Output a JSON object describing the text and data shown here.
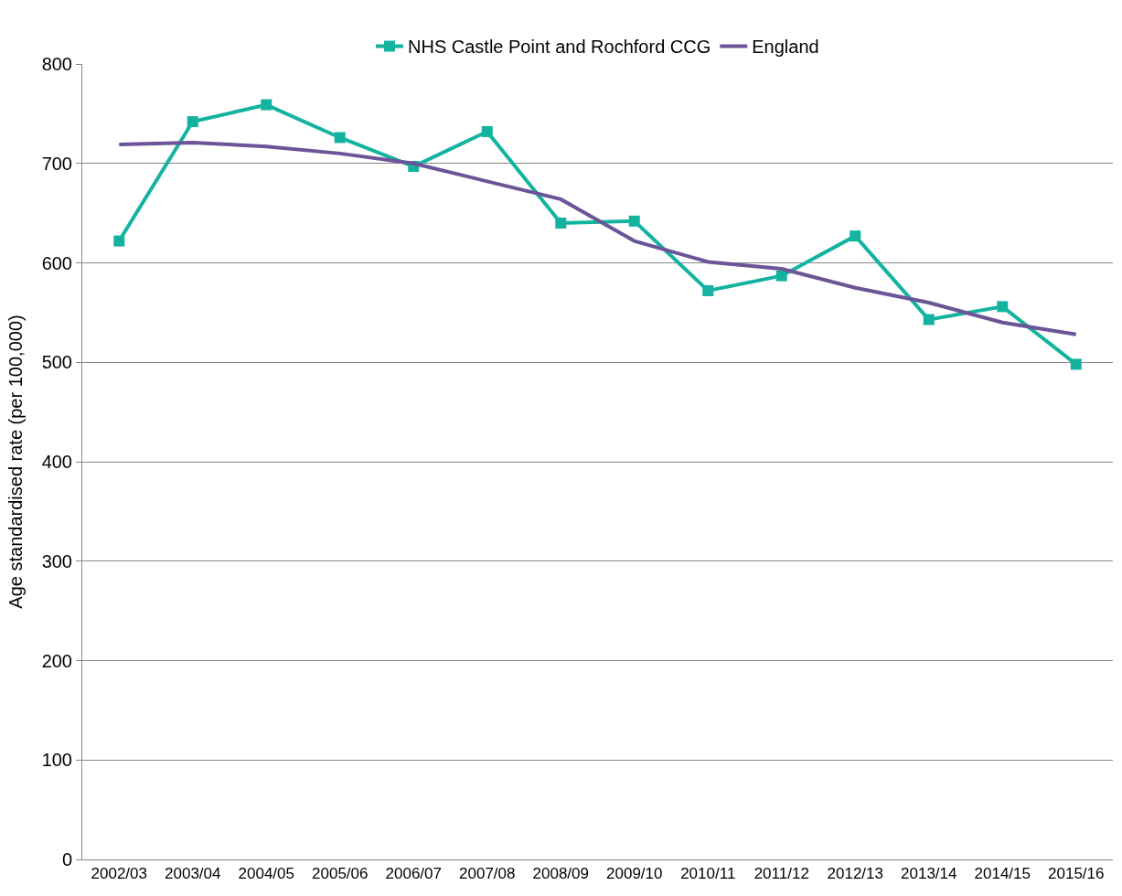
{
  "chart_data": {
    "type": "line",
    "ylabel": "Age standardised rate (per 100,000)",
    "categories": [
      "2002/03",
      "2003/04",
      "2004/05",
      "2005/06",
      "2006/07",
      "2007/08",
      "2008/09",
      "2009/10",
      "2010/11",
      "2011/12",
      "2012/13",
      "2013/14",
      "2014/15",
      "2015/16"
    ],
    "series": [
      {
        "name": "NHS Castle Point and Rochford CCG",
        "color": "#14b3a0",
        "marker": "square",
        "values": [
          622,
          742,
          759,
          726,
          697,
          732,
          640,
          642,
          572,
          587,
          627,
          543,
          556,
          498
        ]
      },
      {
        "name": "England",
        "color": "#6b5497",
        "marker": "none",
        "values": [
          719,
          721,
          717,
          710,
          700,
          682,
          664,
          622,
          601,
          594,
          575,
          560,
          540,
          528
        ]
      }
    ],
    "ylim": [
      0,
      800
    ],
    "yticks": [
      0,
      100,
      200,
      300,
      400,
      500,
      600,
      700,
      800
    ],
    "grid": "y",
    "legend": "top",
    "line_style": "solid"
  }
}
